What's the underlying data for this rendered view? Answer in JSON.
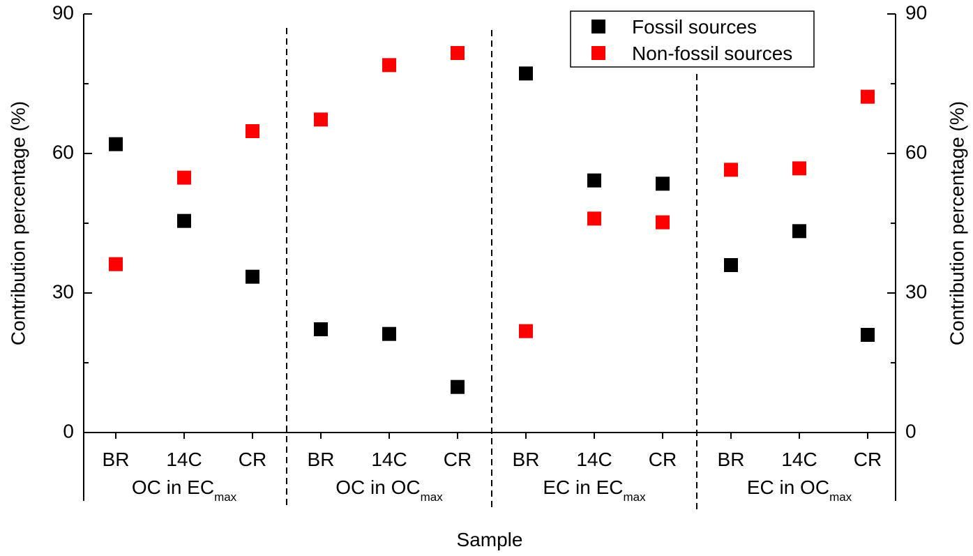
{
  "chart_data": {
    "type": "scatter",
    "xlabel": "Sample",
    "ylabel_left": "Contribution percentage (%)",
    "ylabel_right": "Contribution percentage (%)",
    "ylim": [
      0,
      90
    ],
    "yticks": [
      "0",
      "30",
      "60",
      "90"
    ],
    "grid": false,
    "legend_position": "top-right",
    "categories": [
      "BR",
      "14C",
      "CR",
      "BR",
      "14C",
      "CR",
      "BR",
      "14C",
      "CR",
      "BR",
      "14C",
      "CR"
    ],
    "groups": [
      {
        "main": "OC in EC",
        "sub": "max"
      },
      {
        "main": "OC in OC",
        "sub": "max"
      },
      {
        "main": "EC in EC",
        "sub": "max"
      },
      {
        "main": "EC in OC",
        "sub": "max"
      }
    ],
    "series": [
      {
        "name": "Fossil sources",
        "color": "#000000",
        "values": [
          62,
          45.5,
          33.5,
          22.2,
          21.2,
          9.8,
          77.2,
          54.2,
          53.5,
          36,
          43.3,
          21
        ]
      },
      {
        "name": "Non-fossil sources",
        "color": "#ff0000",
        "values": [
          36.2,
          54.8,
          64.8,
          67.3,
          79,
          81.6,
          21.8,
          46,
          45.2,
          56.5,
          56.8,
          72.2
        ]
      }
    ]
  }
}
